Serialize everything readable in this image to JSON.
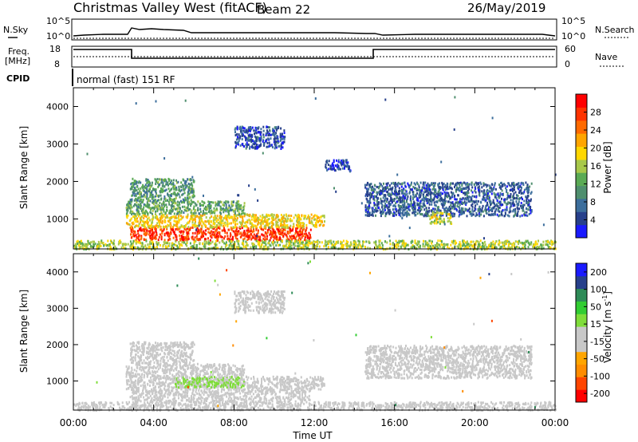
{
  "header": {
    "title": "Christmas Valley West (fitACF)",
    "beam": "Beam 22",
    "date": "26/May/2019"
  },
  "aux_panels": {
    "nsky_label": "N.Sky",
    "nsky_ticks": [
      "10^5",
      "10^0"
    ],
    "nsearch_label": "N.Search",
    "nsearch_ticks": [
      "10^5",
      "10^0"
    ],
    "freq_label_1": "Freq.",
    "freq_label_2": "[MHz]",
    "freq_ticks": [
      "18",
      "8"
    ],
    "nave_label": "Nave",
    "nave_ticks": [
      "60",
      "0"
    ],
    "cpid_label": "CPID",
    "cpid_value": "normal (fast) 151 RF"
  },
  "colors": {
    "power_scale": [
      "#1a1aff",
      "#27408b",
      "#3c6e9c",
      "#4f8f6e",
      "#5aaa54",
      "#a8c84a",
      "#ffd700",
      "#ffa500",
      "#ff6a00",
      "#ff3300",
      "#ff0000"
    ],
    "velocity_scale": [
      "#ff0000",
      "#ff4500",
      "#ff8c00",
      "#ffa500",
      "#c8c8c8",
      "#c8c8c8",
      "#7fdd3a",
      "#32cd32",
      "#2e8b57",
      "#27408b",
      "#1a1aff"
    ]
  },
  "chart_data": [
    {
      "type": "heatmap",
      "name": "power",
      "xlabel": "",
      "ylabel": "Slant Range [km]",
      "xlim": [
        0,
        24
      ],
      "ylim": [
        200,
        4500
      ],
      "y_ticks": [
        "1000",
        "2000",
        "3000",
        "4000"
      ],
      "colorbar": {
        "label": "Power [dB]",
        "range": [
          0,
          32
        ],
        "ticks": [
          "4",
          "8",
          "12",
          "16",
          "20",
          "24",
          "28"
        ]
      },
      "regions": [
        {
          "t": [
            2.8,
            11.8
          ],
          "r": [
            450,
            800
          ],
          "level": 28
        },
        {
          "t": [
            2.6,
            12.5
          ],
          "r": [
            800,
            1150
          ],
          "level": 19
        },
        {
          "t": [
            2.6,
            8.5
          ],
          "r": [
            1150,
            1500
          ],
          "level": 12
        },
        {
          "t": [
            2.8,
            6.0
          ],
          "r": [
            1500,
            2100
          ],
          "level": 11
        },
        {
          "t": [
            14.5,
            22.8
          ],
          "r": [
            1100,
            2000
          ],
          "level": 6
        },
        {
          "t": [
            17.7,
            18.8
          ],
          "r": [
            900,
            1200
          ],
          "level": 17
        },
        {
          "t": [
            0.0,
            24.0
          ],
          "r": [
            220,
            450
          ],
          "level": 16
        },
        {
          "t": [
            8.0,
            10.5
          ],
          "r": [
            2900,
            3500
          ],
          "level": 5
        },
        {
          "t": [
            12.5,
            13.8
          ],
          "r": [
            2300,
            2600
          ],
          "level": 4
        }
      ]
    },
    {
      "type": "heatmap",
      "name": "velocity",
      "xlabel": "Time UT",
      "ylabel": "Slant Range [km]",
      "xlim": [
        0,
        24
      ],
      "ylim": [
        200,
        4500
      ],
      "x_ticks": [
        "00:00",
        "04:00",
        "08:00",
        "12:00",
        "16:00",
        "20:00",
        "00:00"
      ],
      "y_ticks": [
        "1000",
        "2000",
        "3000",
        "4000"
      ],
      "colorbar": {
        "label": "Velocity [m s-1]",
        "label_main": "Velocity [m s",
        "label_exp": "-1",
        "label_end": "]",
        "ticks": [
          "200",
          "100",
          "50",
          "15",
          "-15",
          "-50",
          "-100",
          "-200"
        ]
      },
      "regions": [
        {
          "t": [
            2.8,
            11.8
          ],
          "r": [
            450,
            800
          ],
          "level": -40
        },
        {
          "t": [
            2.6,
            12.5
          ],
          "r": [
            800,
            1150
          ],
          "level": 0
        },
        {
          "t": [
            5.0,
            8.5
          ],
          "r": [
            850,
            1150
          ],
          "level": 30
        },
        {
          "t": [
            2.6,
            8.5
          ],
          "r": [
            1150,
            1500
          ],
          "level": -30
        },
        {
          "t": [
            2.8,
            6.0
          ],
          "r": [
            1500,
            2100
          ],
          "level": 0
        },
        {
          "t": [
            14.5,
            22.8
          ],
          "r": [
            1100,
            2000
          ],
          "level": 0
        },
        {
          "t": [
            0.0,
            24.0
          ],
          "r": [
            220,
            450
          ],
          "level": -20
        },
        {
          "t": [
            8.0,
            10.5
          ],
          "r": [
            2900,
            3500
          ],
          "level": 0
        }
      ]
    }
  ]
}
